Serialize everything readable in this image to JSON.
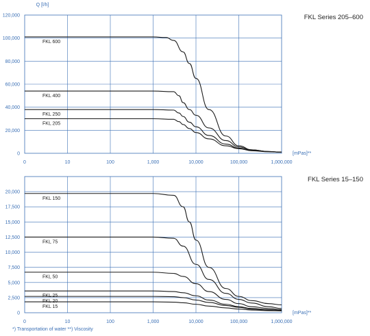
{
  "colors": {
    "axis": "#3a6fb5",
    "grid": "#3a6fb5",
    "line": "#1a1a1a",
    "text": "#222222"
  },
  "footnote": "*) Transportation of water  **) Viscosity",
  "chart_data": [
    {
      "type": "line",
      "title": "FKL Series 205–600",
      "ylabel": "Q [l/h]",
      "xlabel": "[mPas]**",
      "xscale": "log",
      "xlim": [
        1,
        1000000
      ],
      "ylim": [
        0,
        120000
      ],
      "xticks": [
        "0",
        "10",
        "100",
        "1,000",
        "10,000",
        "100,000",
        "1,000,000"
      ],
      "yticks": [
        "0",
        "20,000",
        "40,000",
        "60,000",
        "80,000",
        "100,000",
        "120,000"
      ],
      "ytick_values": [
        0,
        20000,
        40000,
        60000,
        80000,
        100000,
        120000
      ],
      "grid": true,
      "series": [
        {
          "name": "FKL 600",
          "x": [
            1,
            1000,
            2000,
            3000,
            5000,
            7000,
            10000,
            20000,
            50000,
            100000,
            200000,
            500000,
            1000000
          ],
          "y": [
            101000,
            101000,
            100500,
            98000,
            88000,
            78000,
            65000,
            38000,
            15000,
            6500,
            3000,
            1500,
            1000
          ]
        },
        {
          "name": "FKL 400",
          "x": [
            1,
            1000,
            3000,
            4000,
            5000,
            7000,
            10000,
            20000,
            50000,
            100000,
            200000,
            500000,
            1000000
          ],
          "y": [
            54000,
            54000,
            53500,
            50000,
            44000,
            38000,
            33000,
            22000,
            11000,
            5500,
            3000,
            1500,
            1000
          ]
        },
        {
          "name": "FKL 250",
          "x": [
            1,
            1000,
            3000,
            4000,
            5000,
            7000,
            10000,
            20000,
            50000,
            100000,
            200000,
            500000,
            1000000
          ],
          "y": [
            38000,
            38000,
            37500,
            35000,
            32000,
            27000,
            23000,
            15500,
            8000,
            4500,
            2500,
            1500,
            1000
          ]
        },
        {
          "name": "FKL 205",
          "x": [
            1,
            1000,
            3000,
            4000,
            5000,
            7000,
            10000,
            20000,
            50000,
            100000,
            200000,
            500000,
            1000000
          ],
          "y": [
            30000,
            30000,
            29500,
            27500,
            25000,
            21500,
            18000,
            12500,
            6500,
            4000,
            2200,
            1300,
            1000
          ]
        }
      ]
    },
    {
      "type": "line",
      "title": "FKL Series 15–150",
      "ylabel": "",
      "xlabel": "[mPas]**",
      "xscale": "log",
      "xlim": [
        1,
        1000000
      ],
      "ylim": [
        0,
        22500
      ],
      "xticks": [
        "0",
        "10",
        "100",
        "1,000",
        "10,000",
        "100,000",
        "1,000,000"
      ],
      "yticks": [
        "0",
        "2,500",
        "5,000",
        "7,500",
        "10,000",
        "12,500",
        "15,000",
        "17,500",
        "20,000"
      ],
      "ytick_values": [
        0,
        2500,
        5000,
        7500,
        10000,
        12500,
        15000,
        17500,
        20000
      ],
      "grid": true,
      "series": [
        {
          "name": "FKL 150",
          "x": [
            1,
            1000,
            3000,
            5000,
            7000,
            10000,
            20000,
            50000,
            100000,
            200000,
            500000,
            1000000
          ],
          "y": [
            19700,
            19700,
            19400,
            17500,
            15000,
            12000,
            7500,
            4000,
            2700,
            2000,
            1500,
            1300
          ]
        },
        {
          "name": "FKL 75",
          "x": [
            1,
            1000,
            3000,
            5000,
            10000,
            20000,
            50000,
            100000,
            200000,
            500000,
            1000000
          ],
          "y": [
            12500,
            12500,
            12300,
            11000,
            8000,
            5500,
            3200,
            2200,
            1600,
            1000,
            700
          ]
        },
        {
          "name": "FKL 50",
          "x": [
            1,
            1000,
            3000,
            5000,
            10000,
            20000,
            50000,
            100000,
            200000,
            500000,
            1000000
          ],
          "y": [
            6700,
            6700,
            6500,
            6000,
            4800,
            3500,
            2200,
            1500,
            1000,
            700,
            500
          ]
        },
        {
          "name": "FKL 25",
          "x": [
            1,
            1000,
            3000,
            5000,
            10000,
            20000,
            50000,
            100000,
            200000,
            500000,
            1000000
          ],
          "y": [
            3600,
            3600,
            3500,
            3300,
            2800,
            2100,
            1400,
            1000,
            700,
            500,
            400
          ]
        },
        {
          "name": "FKL 20",
          "x": [
            1,
            1000,
            3000,
            5000,
            10000,
            20000,
            50000,
            100000,
            200000,
            500000,
            1000000
          ],
          "y": [
            2700,
            2700,
            2650,
            2500,
            2100,
            1700,
            1200,
            900,
            600,
            450,
            350
          ]
        },
        {
          "name": "FKL 15",
          "x": [
            1,
            1000,
            3000,
            5000,
            10000,
            20000,
            50000,
            100000,
            200000,
            500000,
            1000000
          ],
          "y": [
            1800,
            1800,
            1750,
            1650,
            1400,
            1100,
            800,
            600,
            450,
            350,
            300
          ]
        }
      ]
    }
  ]
}
